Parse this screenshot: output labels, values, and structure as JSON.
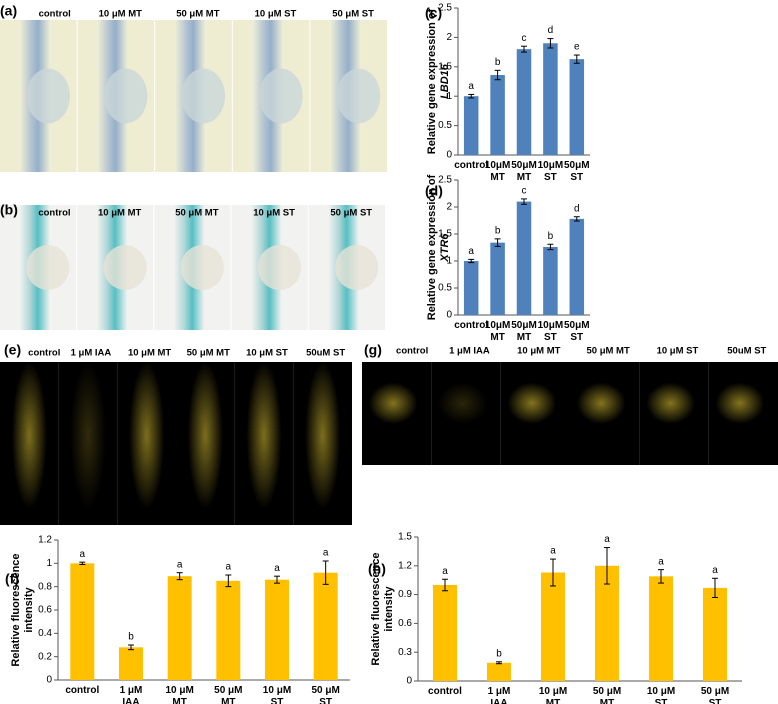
{
  "image_panels": [
    {
      "label": "(a)",
      "columns": [
        "control",
        "10 μM MT",
        "50 μM MT",
        "10 μM ST",
        "50 μM ST"
      ]
    },
    {
      "label": "(b)",
      "columns": [
        "control",
        "10 μM MT",
        "50 μM MT",
        "10 μM ST",
        "50 μM ST"
      ]
    },
    {
      "label": "(e)",
      "columns": [
        "control",
        "1 μM IAA",
        "10 μM MT",
        "50 μM MT",
        "10 μM ST",
        "50uM ST"
      ]
    },
    {
      "label": "(g)",
      "columns": [
        "control",
        "1 μM IAA",
        "10 μM MT",
        "50 μM MT",
        "10 μM ST",
        "50uM ST"
      ]
    }
  ],
  "chart_data": [
    {
      "type": "bar",
      "label": "(c)",
      "ylabel": [
        "Relative gene expression of",
        "LBD16"
      ],
      "color": "#4f81bd",
      "categories": [
        "control",
        "10μM MT",
        "50μM MT",
        "10μM ST",
        "50μM ST"
      ],
      "values": [
        1.0,
        1.36,
        1.8,
        1.9,
        1.63
      ],
      "errors": [
        0.03,
        0.08,
        0.05,
        0.08,
        0.07
      ],
      "letters": [
        "a",
        "b",
        "c",
        "d",
        "e"
      ],
      "ylim": [
        0,
        2.5
      ],
      "yticks": [
        0,
        0.5,
        1,
        1.5,
        2,
        2.5
      ]
    },
    {
      "type": "bar",
      "label": "(d)",
      "ylabel": [
        "Relative gene expression of",
        "XTR6"
      ],
      "color": "#4f81bd",
      "categories": [
        "control",
        "10μM MT",
        "50μM MT",
        "10μM ST",
        "50μM ST"
      ],
      "values": [
        1.0,
        1.34,
        2.1,
        1.26,
        1.78
      ],
      "errors": [
        0.03,
        0.07,
        0.05,
        0.05,
        0.04
      ],
      "letters": [
        "a",
        "b",
        "c",
        "b",
        "d"
      ],
      "ylim": [
        0,
        2.5
      ],
      "yticks": [
        0,
        0.5,
        1,
        1.5,
        2,
        2.5
      ]
    },
    {
      "type": "bar",
      "label": "(f)",
      "ylabel": [
        "Relative fluorescence",
        "intensity"
      ],
      "color": "#ffc000",
      "categories": [
        "control",
        "1 μM IAA",
        "10 μM MT",
        "50 μM MT",
        "10 μM ST",
        "50 μM ST"
      ],
      "values": [
        1.0,
        0.28,
        0.89,
        0.85,
        0.86,
        0.92
      ],
      "errors": [
        0.01,
        0.02,
        0.03,
        0.05,
        0.03,
        0.1
      ],
      "letters": [
        "a",
        "b",
        "a",
        "a",
        "a",
        "a"
      ],
      "ylim": [
        0,
        1.2
      ],
      "yticks": [
        0,
        0.2,
        0.4,
        0.6,
        0.8,
        1,
        1.2
      ]
    },
    {
      "type": "bar",
      "label": "(h)",
      "ylabel": [
        "Relative fluorescence",
        "intensity"
      ],
      "color": "#ffc000",
      "categories": [
        "control",
        "1 μM IAA",
        "10 μM MT",
        "50 μM MT",
        "10 μM ST",
        "50 μM ST"
      ],
      "values": [
        1.0,
        0.19,
        1.13,
        1.2,
        1.09,
        0.97
      ],
      "errors": [
        0.06,
        0.01,
        0.14,
        0.19,
        0.07,
        0.1
      ],
      "letters": [
        "a",
        "b",
        "a",
        "a",
        "a",
        "a"
      ],
      "ylim": [
        0,
        1.5
      ],
      "yticks": [
        0,
        0.3,
        0.6,
        0.9,
        1.2,
        1.5
      ]
    }
  ]
}
